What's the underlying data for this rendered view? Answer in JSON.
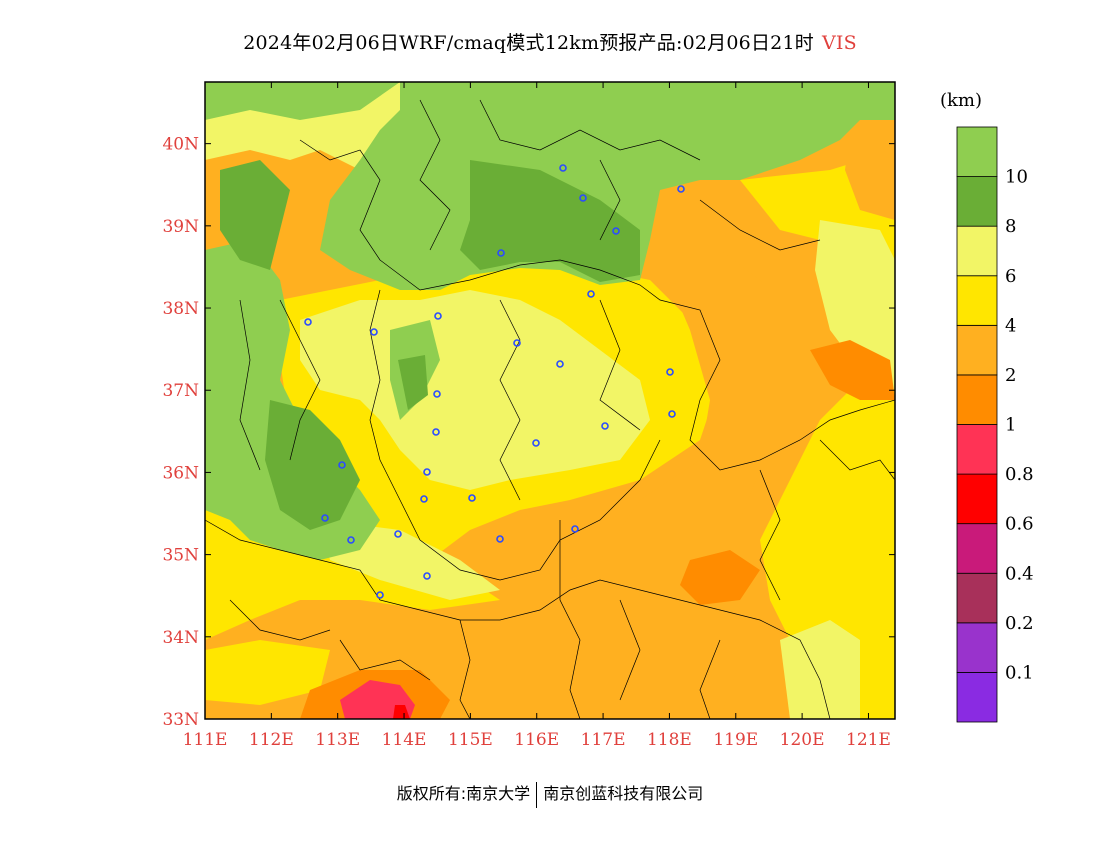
{
  "title": {
    "text": "2024年02月06日WRF/cmaq模式12km预报产品:02月06日21时",
    "variable": "VIS"
  },
  "legend": {
    "unit": "(km)",
    "colors": [
      "#8a2be2",
      "#9933cc",
      "#a8305a",
      "#c91a7a",
      "#ff0000",
      "#ff3355",
      "#ff8c00",
      "#ffb020",
      "#ffe600",
      "#f2f566",
      "#6aae36",
      "#8fce50"
    ],
    "labels": [
      "0.1",
      "0.2",
      "0.4",
      "0.6",
      "0.8",
      "1",
      "2",
      "4",
      "6",
      "8",
      "10"
    ]
  },
  "map": {
    "lat_labels": [
      "40N",
      "39N",
      "38N",
      "37N",
      "36N",
      "35N",
      "34N",
      "33N"
    ],
    "lon_labels": [
      "111E",
      "112E",
      "113E",
      "114E",
      "115E",
      "116E",
      "117E",
      "118E",
      "119E",
      "120E",
      "121E"
    ],
    "lat_range": [
      33,
      40.75
    ],
    "lon_range": [
      111,
      121.4
    ]
  },
  "footer": {
    "left": "版权所有:南京大学",
    "right": "南京创蓝科技有限公司"
  }
}
